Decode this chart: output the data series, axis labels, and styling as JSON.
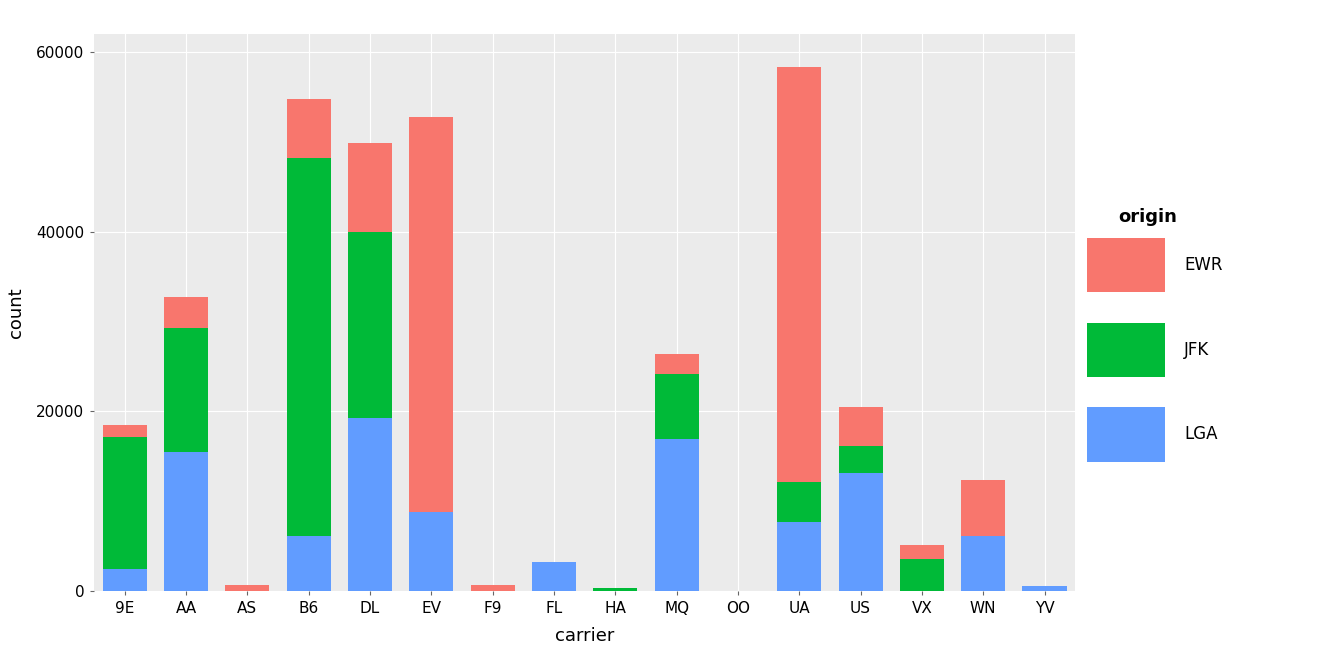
{
  "carriers": [
    "9E",
    "AA",
    "AS",
    "B6",
    "DL",
    "EV",
    "F9",
    "FL",
    "HA",
    "MQ",
    "OO",
    "UA",
    "US",
    "VX",
    "WN",
    "YV"
  ],
  "EWR": [
    1268,
    3487,
    714,
    6557,
    9849,
    43939,
    685,
    0,
    0,
    2276,
    6,
    46087,
    4405,
    1566,
    6188,
    0
  ],
  "JFK": [
    14651,
    13783,
    0,
    42076,
    20701,
    0,
    0,
    0,
    342,
    7193,
    0,
    4534,
    2995,
    3596,
    0,
    0
  ],
  "LGA": [
    2541,
    15459,
    0,
    6134,
    19273,
    8826,
    0,
    3260,
    0,
    16928,
    26,
    7657,
    13136,
    0,
    6188,
    544
  ],
  "colors": {
    "EWR": "#F8766D",
    "JFK": "#00BA38",
    "LGA": "#619CFF"
  },
  "ylabel": "count",
  "xlabel": "carrier",
  "ylim": [
    0,
    62000
  ],
  "yticks": [
    0,
    20000,
    40000,
    60000
  ],
  "ytick_labels": [
    "0",
    "20000",
    "40000",
    "60000"
  ],
  "legend_title": "origin",
  "plot_bg": "#EBEBEB",
  "fig_bg": "#FFFFFF",
  "grid_color": "#FFFFFF",
  "bar_width": 0.72,
  "grid_linewidth": 0.8
}
